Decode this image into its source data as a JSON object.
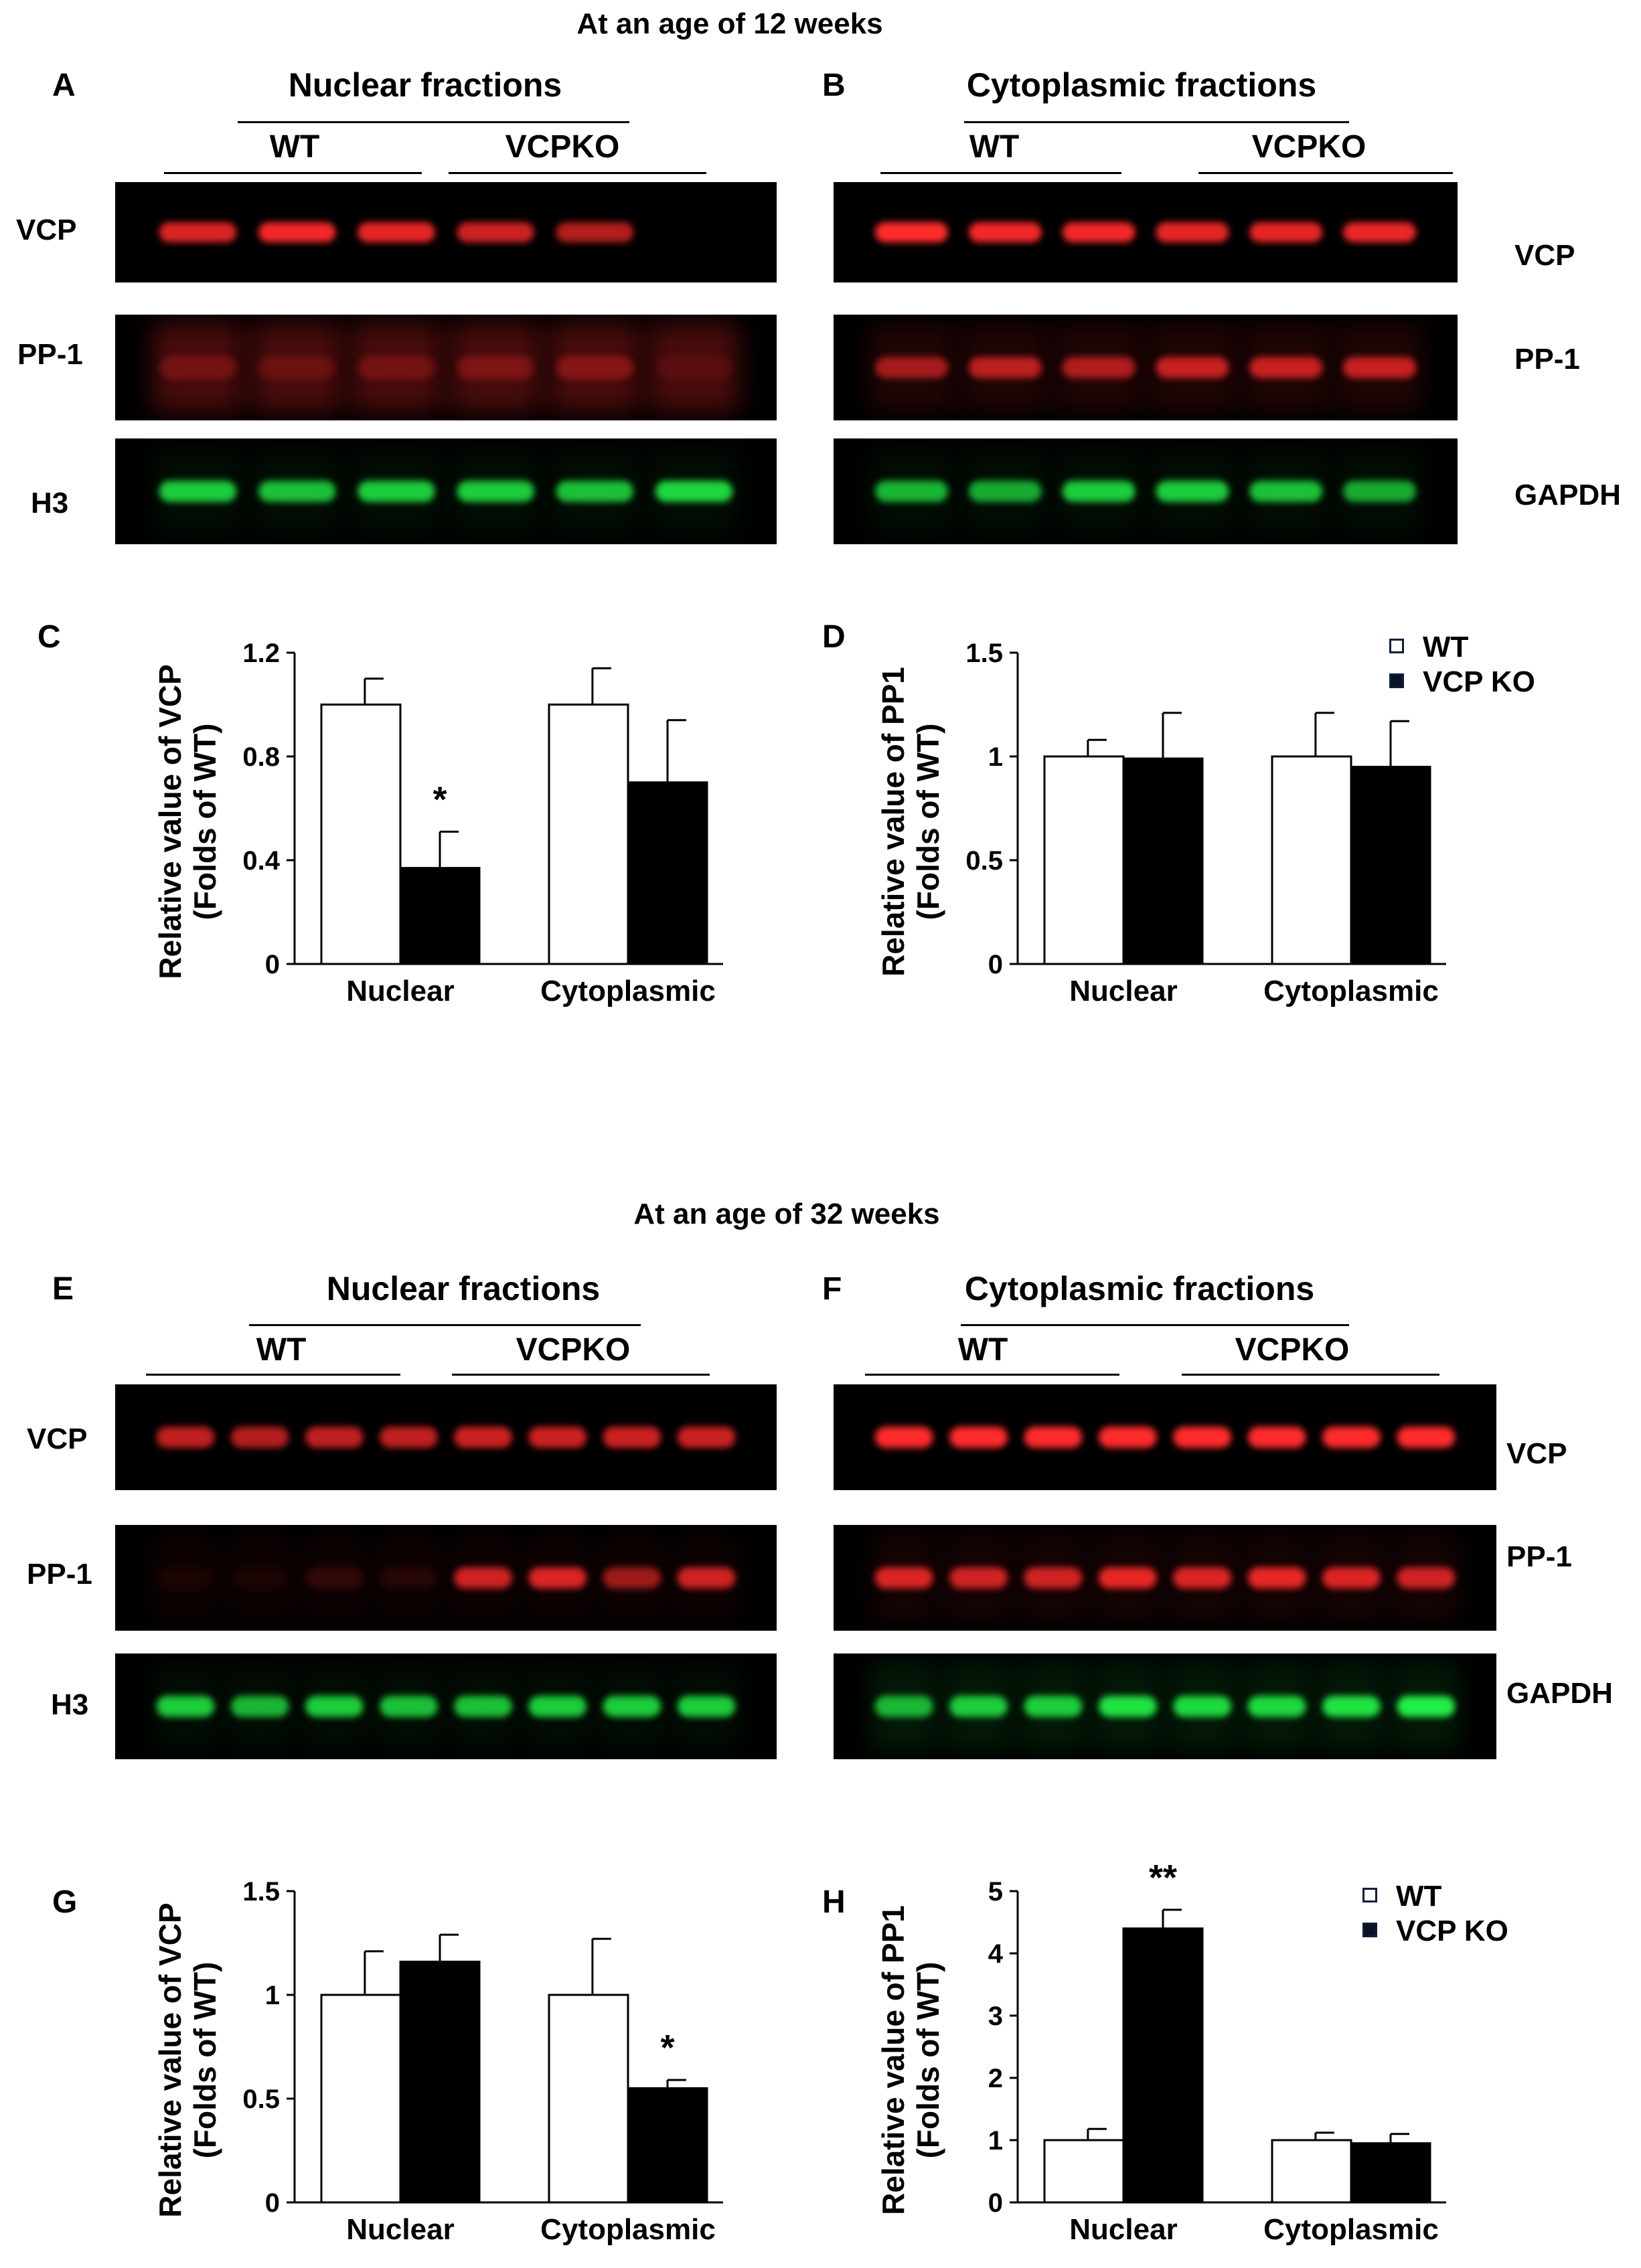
{
  "sections": [
    {
      "title": "At an age of 12 weeks"
    },
    {
      "title": "At an age of 32 weeks"
    }
  ],
  "colors": {
    "blot_bg": "#000000",
    "band_red": "#ff2a2a",
    "band_green": "#22ee44",
    "bar_wt": "#ffffff",
    "bar_ko": "#000000"
  },
  "blots": [
    {
      "panel": "A",
      "title": "Nuclear fractions",
      "groups": [
        "WT",
        "VCPKO"
      ],
      "label_side": "left",
      "rows": [
        {
          "label": "VCP",
          "color": "red",
          "intensities": [
            0.85,
            0.95,
            0.9,
            0.8,
            0.7,
            0.0
          ],
          "haze": 0.0
        },
        {
          "label": "PP-1",
          "color": "red",
          "intensities": [
            0.25,
            0.2,
            0.25,
            0.3,
            0.35,
            0.1
          ],
          "haze": 0.28
        },
        {
          "label": "H3",
          "color": "green",
          "intensities": [
            0.85,
            0.8,
            0.85,
            0.85,
            0.8,
            0.9
          ],
          "haze": 0.05
        }
      ]
    },
    {
      "panel": "B",
      "title": "Cytoplasmic fractions",
      "groups": [
        "WT",
        "VCPKO"
      ],
      "label_side": "right",
      "rows": [
        {
          "label": "VCP",
          "color": "red",
          "intensities": [
            1.0,
            0.95,
            0.95,
            0.9,
            0.9,
            0.92
          ],
          "haze": 0.0
        },
        {
          "label": "PP-1",
          "color": "red",
          "intensities": [
            0.6,
            0.7,
            0.65,
            0.75,
            0.75,
            0.75
          ],
          "haze": 0.12
        },
        {
          "label": "GAPDH",
          "color": "green",
          "intensities": [
            0.75,
            0.7,
            0.85,
            0.85,
            0.8,
            0.7
          ],
          "haze": 0.05
        }
      ]
    },
    {
      "panel": "E",
      "title": "Nuclear fractions",
      "groups": [
        "WT",
        "VCPKO"
      ],
      "label_side": "left",
      "rows": [
        {
          "label": "VCP",
          "color": "red",
          "intensities": [
            0.75,
            0.7,
            0.75,
            0.75,
            0.8,
            0.8,
            0.8,
            0.8
          ],
          "haze": 0.0
        },
        {
          "label": "PP-1",
          "color": "red",
          "intensities": [
            0.05,
            0.05,
            0.15,
            0.1,
            0.8,
            0.85,
            0.6,
            0.8
          ],
          "haze": 0.05
        },
        {
          "label": "H3",
          "color": "green",
          "intensities": [
            0.85,
            0.75,
            0.85,
            0.8,
            0.8,
            0.85,
            0.85,
            0.85
          ],
          "haze": 0.05
        }
      ]
    },
    {
      "panel": "F",
      "title": "Cytoplasmic fractions",
      "groups": [
        "WT",
        "VCPKO"
      ],
      "label_side": "right",
      "rows": [
        {
          "label": "VCP",
          "color": "red",
          "intensities": [
            1.0,
            1.0,
            1.0,
            1.0,
            1.0,
            1.0,
            1.0,
            1.0
          ],
          "haze": 0.0
        },
        {
          "label": "PP-1",
          "color": "red",
          "intensities": [
            0.85,
            0.8,
            0.8,
            0.9,
            0.85,
            0.9,
            0.85,
            0.8
          ],
          "haze": 0.08
        },
        {
          "label": "GAPDH",
          "color": "green",
          "intensities": [
            0.75,
            0.85,
            0.85,
            0.95,
            0.9,
            0.9,
            0.95,
            1.0
          ],
          "haze": 0.1
        }
      ]
    }
  ],
  "chart_data": [
    {
      "panel": "C",
      "type": "bar",
      "ylabel": [
        "Relative value of VCP",
        "(Folds of WT)"
      ],
      "categories": [
        "Nuclear",
        "Cytoplasmic"
      ],
      "ylim": [
        0,
        1.2
      ],
      "yticks": [
        "0",
        "0.4",
        "0.8",
        "1.2"
      ],
      "series": [
        {
          "values": [
            1.0,
            1.0
          ],
          "errors": [
            0.1,
            0.14
          ]
        },
        {
          "values": [
            0.37,
            0.7
          ],
          "errors": [
            0.14,
            0.24
          ]
        }
      ],
      "annotations": [
        {
          "text": "*",
          "category": 0,
          "series": 1
        }
      ]
    },
    {
      "panel": "D",
      "type": "bar",
      "ylabel": [
        "Relative value of PP1",
        "(Folds of WT)"
      ],
      "categories": [
        "Nuclear",
        "Cytoplasmic"
      ],
      "ylim": [
        0,
        1.5
      ],
      "yticks": [
        "0",
        "0.5",
        "1",
        "1.5"
      ],
      "series": [
        {
          "name": "WT",
          "values": [
            1.0,
            1.0
          ],
          "errors": [
            0.08,
            0.21
          ]
        },
        {
          "name": "VCP KO",
          "values": [
            0.99,
            0.95
          ],
          "errors": [
            0.22,
            0.22
          ]
        }
      ],
      "legend": [
        "WT",
        "VCP KO"
      ],
      "annotations": []
    },
    {
      "panel": "G",
      "type": "bar",
      "ylabel": [
        "Relative value of VCP",
        "(Folds of WT)"
      ],
      "categories": [
        "Nuclear",
        "Cytoplasmic"
      ],
      "ylim": [
        0,
        1.5
      ],
      "yticks": [
        "0",
        "0.5",
        "1",
        "1.5"
      ],
      "series": [
        {
          "values": [
            1.0,
            1.0
          ],
          "errors": [
            0.21,
            0.27
          ]
        },
        {
          "values": [
            1.16,
            0.55
          ],
          "errors": [
            0.13,
            0.04
          ]
        }
      ],
      "annotations": [
        {
          "text": "*",
          "category": 1,
          "series": 1
        }
      ]
    },
    {
      "panel": "H",
      "type": "bar",
      "ylabel": [
        "Relative value of PP1",
        "(Folds of WT)"
      ],
      "categories": [
        "Nuclear",
        "Cytoplasmic"
      ],
      "ylim": [
        0,
        5
      ],
      "yticks": [
        "0",
        "1",
        "2",
        "3",
        "4",
        "5"
      ],
      "series": [
        {
          "name": "WT",
          "values": [
            1.0,
            1.0
          ],
          "errors": [
            0.18,
            0.12
          ]
        },
        {
          "name": "VCP KO",
          "values": [
            4.4,
            0.95
          ],
          "errors": [
            0.3,
            0.15
          ]
        }
      ],
      "legend": [
        "WT",
        "VCP KO"
      ],
      "annotations": [
        {
          "text": "**",
          "category": 0,
          "series": 1
        }
      ]
    }
  ]
}
